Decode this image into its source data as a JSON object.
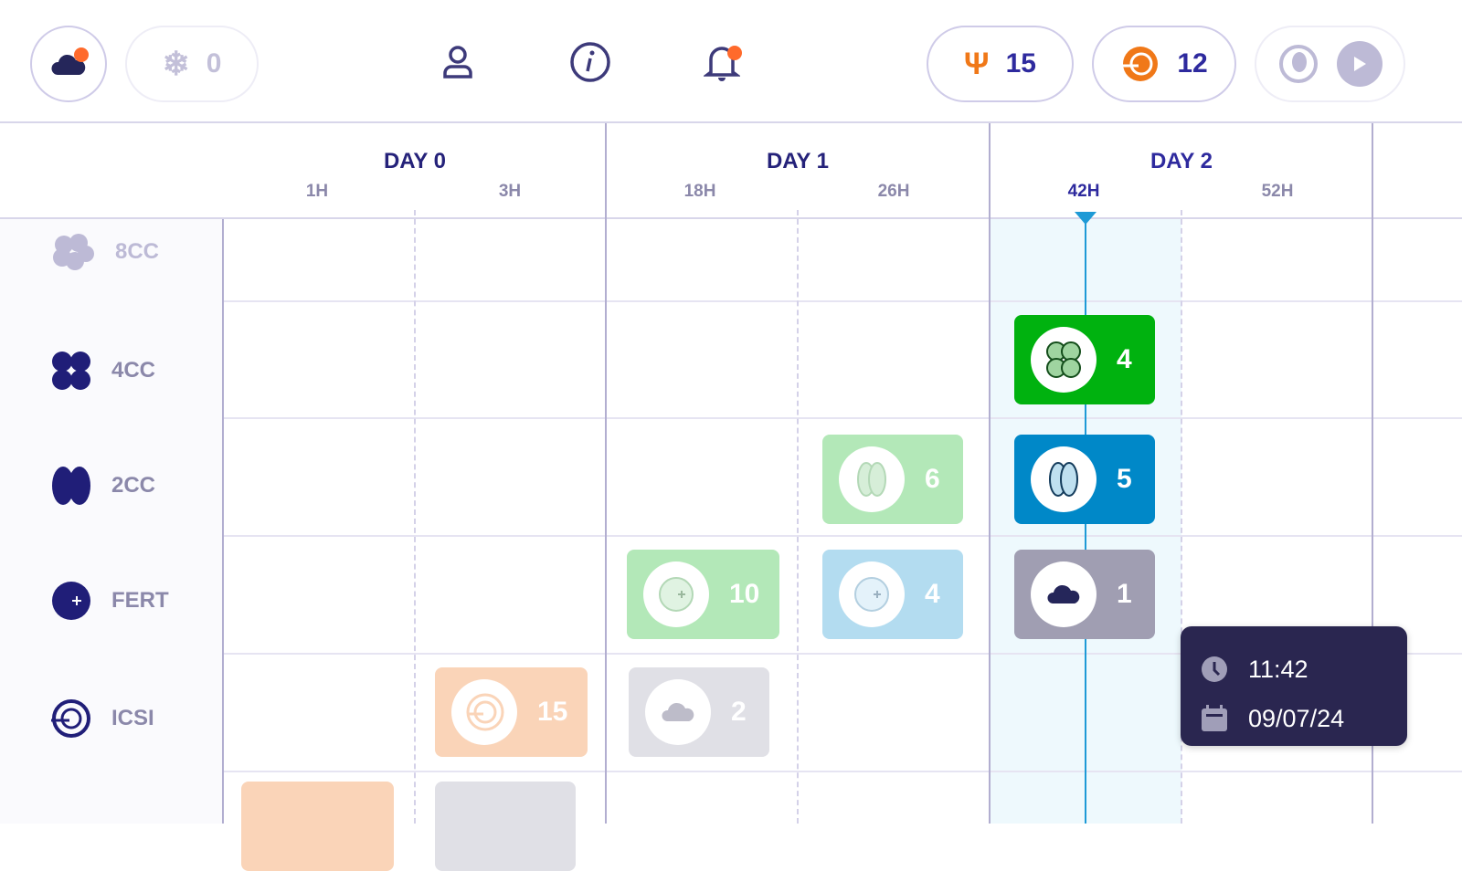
{
  "header": {
    "cloud_button": {
      "icon": "cloud-icon",
      "notification": true
    },
    "cryo_button": {
      "icon": "snowflake-dna-icon",
      "count": "0"
    },
    "profile_icon": "user-icon",
    "info_icon": "info-icon",
    "notifications": {
      "icon": "bell-icon",
      "notification": true
    },
    "oocytes": {
      "icon": "uterus-icon",
      "count": "15"
    },
    "icsi": {
      "icon": "icsi-icon",
      "count": "12"
    },
    "embryo": {
      "icon": "fetus-icon",
      "play_icon": "play-icon"
    }
  },
  "timeline": {
    "days": [
      {
        "label": "DAY 0",
        "hours": [
          "1H",
          "3H"
        ]
      },
      {
        "label": "DAY 1",
        "hours": [
          "18H",
          "26H"
        ]
      },
      {
        "label": "DAY 2",
        "hours": [
          "42H",
          "52H"
        ]
      }
    ],
    "current_hour": "42H",
    "stages": [
      {
        "label": "8CC"
      },
      {
        "label": "4CC"
      },
      {
        "label": "2CC"
      },
      {
        "label": "FERT"
      },
      {
        "label": "ICSI"
      }
    ],
    "cards": [
      {
        "stage": "4CC",
        "hour": "42H",
        "count": "4",
        "color": "#00b20f",
        "icon": "four-cell-icon"
      },
      {
        "stage": "2CC",
        "hour": "26H",
        "count": "6",
        "color": "#b3e8b8",
        "icon": "two-cell-icon"
      },
      {
        "stage": "2CC",
        "hour": "42H",
        "count": "5",
        "color": "#0088c8",
        "icon": "two-cell-icon"
      },
      {
        "stage": "FERT",
        "hour": "18H",
        "count": "10",
        "color": "#b3e8b8",
        "icon": "fertilized-icon"
      },
      {
        "stage": "FERT",
        "hour": "26H",
        "count": "4",
        "color": "#b3dcf0",
        "icon": "fertilized-icon"
      },
      {
        "stage": "FERT",
        "hour": "42H",
        "count": "1",
        "color": "#a09eb2",
        "icon": "cloud-icon"
      },
      {
        "stage": "ICSI",
        "hour": "3H",
        "count": "15",
        "color": "#fad4b8",
        "icon": "icsi-icon"
      },
      {
        "stage": "ICSI",
        "hour": "18H",
        "count": "2",
        "color": "#e0e0e6",
        "icon": "cloud-icon"
      }
    ]
  },
  "tooltip": {
    "time": "11:42",
    "date": "09/07/24"
  },
  "colors": {
    "accent": "#2e2a9e",
    "notification": "#ff6a2b",
    "now_line": "#1e9ad6",
    "highlight": "#eef9fd",
    "tooltip_bg": "#2a2650"
  }
}
